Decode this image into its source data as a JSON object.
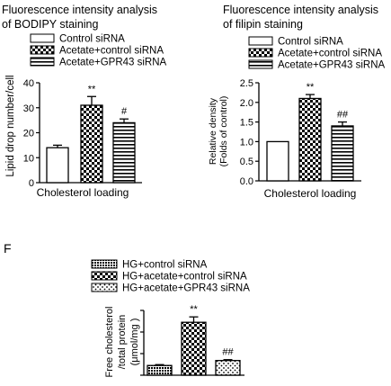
{
  "panel_labels": {
    "bottom": "F"
  },
  "chart_data": [
    {
      "type": "bar",
      "title": [
        "Fluorescence intensity analysis",
        "of BODIPY staining"
      ],
      "ylabel": "Lipid drop number/cell",
      "xlabel": "Cholesterol loading",
      "ylim": [
        0,
        40
      ],
      "yticks": [
        0,
        10,
        20,
        30,
        40
      ],
      "legend_position": "top",
      "series": [
        {
          "name": "Control siRNA",
          "value": 14,
          "error": 1,
          "significance": "",
          "pattern": "open"
        },
        {
          "name": "Acetate+control siRNA",
          "value": 31,
          "error": 3.5,
          "significance": "**",
          "pattern": "checker"
        },
        {
          "name": "Acetate+GPR43 siRNA",
          "value": 24,
          "error": 1.5,
          "significance": "#",
          "pattern": "hstripes"
        }
      ]
    },
    {
      "type": "bar",
      "title": [
        "Fluorescence intensity analysis",
        "of filipin staining"
      ],
      "ylabel": [
        "Relative density",
        "(Folds of control)"
      ],
      "xlabel": "Cholesterol loading",
      "ylim": [
        0,
        2.5
      ],
      "yticks": [
        "0.0",
        "0.5",
        "1.0",
        "1.5",
        "2.0",
        "2.5"
      ],
      "legend_position": "top",
      "series": [
        {
          "name": "Control siRNA",
          "value": 1.0,
          "error": 0,
          "significance": "",
          "pattern": "open"
        },
        {
          "name": "Acetate+control siRNA",
          "value": 2.1,
          "error": 0.1,
          "significance": "**",
          "pattern": "checker"
        },
        {
          "name": "Acetate+GPR43 siRNA",
          "value": 1.4,
          "error": 0.1,
          "significance": "##",
          "pattern": "hstripes"
        }
      ]
    },
    {
      "type": "bar",
      "title": "",
      "ylabel": [
        "Free cholesterol",
        "/total protein",
        "(μmol/mg )"
      ],
      "xlabel": "",
      "ylim": [
        0,
        0.3
      ],
      "yticks": [],
      "legend_position": "top",
      "series": [
        {
          "name": "HG+control siRNA",
          "value": 0.045,
          "error": 0.004,
          "significance": "",
          "pattern": "dense"
        },
        {
          "name": "HG+acetate+control siRNA",
          "value": 0.245,
          "error": 0.025,
          "significance": "**",
          "pattern": "checker"
        },
        {
          "name": "HG+acetate+GPR43 siRNA",
          "value": 0.068,
          "error": 0.004,
          "significance": "##",
          "pattern": "dots"
        }
      ]
    }
  ]
}
